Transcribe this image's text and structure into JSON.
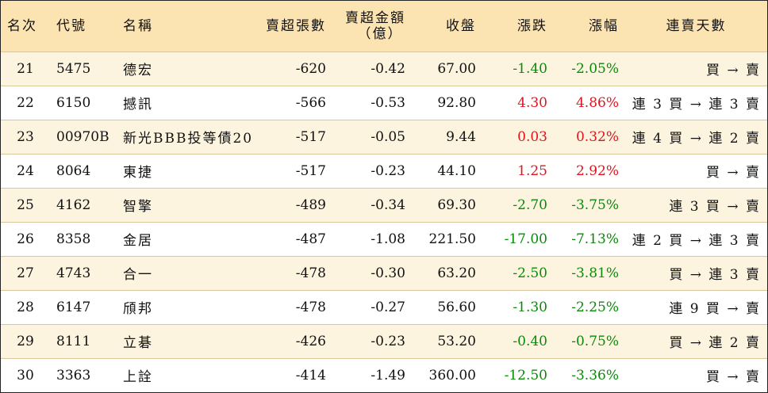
{
  "colors": {
    "header_bg": "#fce4b2",
    "row_odd_bg": "#fdf4df",
    "up": "#e0141e",
    "down": "#0a8a0a"
  },
  "headers": {
    "rank": "名次",
    "code": "代號",
    "name": "名稱",
    "sell_over_lots": "賣超張數",
    "sell_over_amount_line1": "賣超金額",
    "sell_over_amount_line2": "（億）",
    "close": "收盤",
    "change": "漲跌",
    "pct": "漲幅",
    "streak": "連賣天數"
  },
  "rows": [
    {
      "rank": "21",
      "code": "5475",
      "name": "德宏",
      "lots": "-620",
      "amount": "-0.42",
      "close": "67.00",
      "change": "-1.40",
      "pct": "-2.05%",
      "dir": "neg",
      "streak": "買 → 賣"
    },
    {
      "rank": "22",
      "code": "6150",
      "name": "撼訊",
      "lots": "-566",
      "amount": "-0.53",
      "close": "92.80",
      "change": "4.30",
      "pct": "4.86%",
      "dir": "pos",
      "streak": "連 3 買 → 連 3 賣"
    },
    {
      "rank": "23",
      "code": "00970B",
      "name": "新光BBB投等債20",
      "lots": "-517",
      "amount": "-0.05",
      "close": "9.44",
      "change": "0.03",
      "pct": "0.32%",
      "dir": "pos",
      "streak": "連 4 買 → 連 2 賣"
    },
    {
      "rank": "24",
      "code": "8064",
      "name": "東捷",
      "lots": "-517",
      "amount": "-0.23",
      "close": "44.10",
      "change": "1.25",
      "pct": "2.92%",
      "dir": "pos",
      "streak": "買 → 賣"
    },
    {
      "rank": "25",
      "code": "4162",
      "name": "智擎",
      "lots": "-489",
      "amount": "-0.34",
      "close": "69.30",
      "change": "-2.70",
      "pct": "-3.75%",
      "dir": "neg",
      "streak": "連 3 買 → 賣"
    },
    {
      "rank": "26",
      "code": "8358",
      "name": "金居",
      "lots": "-487",
      "amount": "-1.08",
      "close": "221.50",
      "change": "-17.00",
      "pct": "-7.13%",
      "dir": "neg",
      "streak": "連 2 買 → 連 3 賣"
    },
    {
      "rank": "27",
      "code": "4743",
      "name": "合一",
      "lots": "-478",
      "amount": "-0.30",
      "close": "63.20",
      "change": "-2.50",
      "pct": "-3.81%",
      "dir": "neg",
      "streak": "買 → 連 3 賣"
    },
    {
      "rank": "28",
      "code": "6147",
      "name": "頎邦",
      "lots": "-478",
      "amount": "-0.27",
      "close": "56.60",
      "change": "-1.30",
      "pct": "-2.25%",
      "dir": "neg",
      "streak": "連 9 買 → 賣"
    },
    {
      "rank": "29",
      "code": "8111",
      "name": "立碁",
      "lots": "-426",
      "amount": "-0.23",
      "close": "53.20",
      "change": "-0.40",
      "pct": "-0.75%",
      "dir": "neg",
      "streak": "買 → 連 2 賣"
    },
    {
      "rank": "30",
      "code": "3363",
      "name": "上詮",
      "lots": "-414",
      "amount": "-1.49",
      "close": "360.00",
      "change": "-12.50",
      "pct": "-3.36%",
      "dir": "neg",
      "streak": "買 → 賣"
    }
  ]
}
